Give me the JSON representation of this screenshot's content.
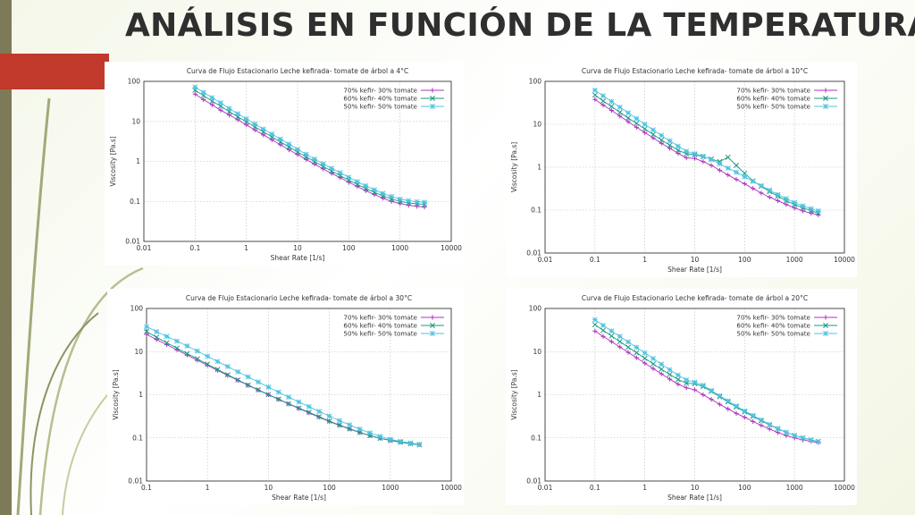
{
  "slide": {
    "title": "ANÁLISIS EN FUNCIÓN DE LA TEMPERATURA"
  },
  "chart_data": [
    {
      "type": "line",
      "title": "Curva de Flujo Estacionario Leche kefirada- tomate de árbol a 4°C",
      "xlabel": "Shear Rate [1/s]",
      "ylabel": "Viscosity [Pa.s]",
      "x_scale": "log",
      "y_scale": "log",
      "xlim": [
        0.01,
        10000
      ],
      "ylim": [
        0.01,
        100
      ],
      "xticks": [
        "0.01",
        "0.1",
        "1",
        "10",
        "100",
        "1000",
        "10000"
      ],
      "yticks": [
        "0.01",
        "0.1",
        "1",
        "10",
        "100"
      ],
      "grid": true,
      "legend_position": "top-right",
      "x": [
        0.1,
        0.146,
        0.215,
        0.316,
        0.464,
        0.681,
        1,
        1.47,
        2.15,
        3.16,
        4.64,
        6.81,
        10,
        14.7,
        21.5,
        31.6,
        46.4,
        68.1,
        100,
        147,
        215,
        316,
        464,
        681,
        1000,
        1470,
        2150,
        3000
      ],
      "series": [
        {
          "name": "70% kefir- 30% tomate",
          "color": "#b030c0",
          "values": [
            48,
            35,
            26,
            19,
            14.5,
            11,
            8.2,
            6.1,
            4.6,
            3.45,
            2.6,
            1.95,
            1.48,
            1.12,
            0.85,
            0.65,
            0.5,
            0.39,
            0.3,
            0.235,
            0.185,
            0.148,
            0.12,
            0.1,
            0.088,
            0.08,
            0.075,
            0.072
          ]
        },
        {
          "name": "60% kefir- 40% tomate",
          "color": "#1a9a80",
          "values": [
            60,
            44,
            32,
            24,
            17.5,
            13,
            9.8,
            7.3,
            5.5,
            4.1,
            3.05,
            2.3,
            1.72,
            1.3,
            0.98,
            0.75,
            0.57,
            0.44,
            0.34,
            0.265,
            0.21,
            0.168,
            0.137,
            0.115,
            0.1,
            0.092,
            0.087,
            0.084
          ]
        },
        {
          "name": "50% kefir- 50% tomate",
          "color": "#4fc3e0",
          "values": [
            72,
            53,
            39,
            29,
            21,
            15.5,
            11.5,
            8.6,
            6.4,
            4.8,
            3.6,
            2.7,
            2.0,
            1.5,
            1.14,
            0.87,
            0.67,
            0.52,
            0.4,
            0.31,
            0.245,
            0.195,
            0.158,
            0.132,
            0.114,
            0.104,
            0.098,
            0.095
          ]
        }
      ]
    },
    {
      "type": "line",
      "title": "Curva de Flujo Estacionario Leche kefirada- tomate de árbol a 10°C",
      "xlabel": "Shear Rate [1/s]",
      "ylabel": "Viscosity [Pa.s]",
      "x_scale": "log",
      "y_scale": "log",
      "xlim": [
        0.01,
        10000
      ],
      "ylim": [
        0.01,
        100
      ],
      "xticks": [
        "0.01",
        "0.1",
        "1",
        "10",
        "100",
        "1000",
        "10000"
      ],
      "yticks": [
        "0.01",
        "0.1",
        "1",
        "10",
        "100"
      ],
      "grid": true,
      "legend_position": "top-right",
      "x": [
        0.1,
        0.146,
        0.215,
        0.316,
        0.464,
        0.681,
        1,
        1.47,
        2.15,
        3.16,
        4.64,
        6.81,
        10,
        14.7,
        21.5,
        31.6,
        46.4,
        68.1,
        100,
        147,
        215,
        316,
        464,
        681,
        1000,
        1470,
        2150,
        3000
      ],
      "series": [
        {
          "name": "70% kefir- 30% tomate",
          "color": "#b030c0",
          "values": [
            38,
            28,
            21,
            15.5,
            11.5,
            8.5,
            6.4,
            4.8,
            3.6,
            2.75,
            2.1,
            1.65,
            1.6,
            1.35,
            1.1,
            0.85,
            0.66,
            0.52,
            0.41,
            0.32,
            0.25,
            0.2,
            0.165,
            0.135,
            0.112,
            0.096,
            0.085,
            0.077
          ]
        },
        {
          "name": "60% kefir- 40% tomate",
          "color": "#1a9a80",
          "values": [
            48,
            35,
            26,
            19,
            14,
            10.5,
            7.8,
            5.8,
            4.3,
            3.25,
            2.5,
            2.05,
            1.95,
            1.75,
            1.55,
            1.35,
            1.7,
            1.1,
            0.72,
            0.48,
            0.36,
            0.27,
            0.21,
            0.165,
            0.135,
            0.113,
            0.097,
            0.085
          ]
        },
        {
          "name": "50% kefir- 50% tomate",
          "color": "#4fc3e0",
          "values": [
            62,
            46,
            34,
            25,
            18.5,
            13.5,
            10,
            7.4,
            5.5,
            4.1,
            3.1,
            2.35,
            2.05,
            1.8,
            1.5,
            1.2,
            0.95,
            0.76,
            0.6,
            0.47,
            0.37,
            0.29,
            0.23,
            0.185,
            0.15,
            0.125,
            0.108,
            0.096
          ]
        }
      ]
    },
    {
      "type": "line",
      "title": "Curva de Flujo Estacionario Leche kefirada- tomate de árbol a 30°C",
      "xlabel": "Shear Rate [1/s]",
      "ylabel": "Viscosity [Pa.s]",
      "x_scale": "log",
      "y_scale": "log",
      "xlim": [
        0.1,
        10000
      ],
      "ylim": [
        0.01,
        100
      ],
      "xticks": [
        "0.1",
        "1",
        "10",
        "100",
        "1000",
        "10000"
      ],
      "yticks": [
        "0.01",
        "0.1",
        "1",
        "10",
        "100"
      ],
      "grid": true,
      "legend_position": "top-right",
      "x": [
        0.1,
        0.146,
        0.215,
        0.316,
        0.464,
        0.681,
        1,
        1.47,
        2.15,
        3.16,
        4.64,
        6.81,
        10,
        14.7,
        21.5,
        31.6,
        46.4,
        68.1,
        100,
        147,
        215,
        316,
        464,
        681,
        1000,
        1470,
        2150,
        3000
      ],
      "series": [
        {
          "name": "70% kefir- 30% tomate",
          "color": "#b030c0",
          "values": [
            25,
            19,
            14.5,
            11,
            8.3,
            6.3,
            4.8,
            3.65,
            2.8,
            2.15,
            1.65,
            1.28,
            1.0,
            0.78,
            0.61,
            0.48,
            0.38,
            0.3,
            0.24,
            0.195,
            0.16,
            0.133,
            0.113,
            0.098,
            0.088,
            0.08,
            0.074,
            0.07
          ]
        },
        {
          "name": "60% kefir- 40% tomate",
          "color": "#1a9a80",
          "values": [
            29,
            21.5,
            16,
            12,
            9,
            6.8,
            5.1,
            3.85,
            2.9,
            2.2,
            1.68,
            1.3,
            1.01,
            0.79,
            0.62,
            0.49,
            0.39,
            0.31,
            0.245,
            0.198,
            0.162,
            0.134,
            0.113,
            0.098,
            0.087,
            0.079,
            0.073,
            0.069
          ]
        },
        {
          "name": "50% kefir- 50% tomate",
          "color": "#4fc3e0",
          "values": [
            38,
            29,
            22.5,
            17.5,
            13.5,
            10.3,
            7.8,
            5.9,
            4.5,
            3.4,
            2.6,
            1.98,
            1.5,
            1.15,
            0.88,
            0.68,
            0.53,
            0.41,
            0.32,
            0.25,
            0.2,
            0.16,
            0.13,
            0.108,
            0.093,
            0.083,
            0.076,
            0.071
          ]
        }
      ]
    },
    {
      "type": "line",
      "title": "Curva de Flujo Estacionario Leche kefirada- tomate de árbol a 20°C",
      "xlabel": "Shear Rate [1/s]",
      "ylabel": "Viscosity [Pa.s]",
      "x_scale": "log",
      "y_scale": "log",
      "xlim": [
        0.01,
        10000
      ],
      "ylim": [
        0.01,
        100
      ],
      "xticks": [
        "0.01",
        "0.1",
        "1",
        "10",
        "100",
        "1000",
        "10000"
      ],
      "yticks": [
        "0.01",
        "0.1",
        "1",
        "10",
        "100"
      ],
      "grid": true,
      "legend_position": "top-right",
      "x": [
        0.1,
        0.146,
        0.215,
        0.316,
        0.464,
        0.681,
        1,
        1.47,
        2.15,
        3.16,
        4.64,
        6.81,
        10,
        14.7,
        21.5,
        31.6,
        46.4,
        68.1,
        100,
        147,
        215,
        316,
        464,
        681,
        1000,
        1470,
        2150,
        3000
      ],
      "series": [
        {
          "name": "70% kefir- 30% tomate",
          "color": "#b030c0",
          "values": [
            30,
            22.5,
            17,
            12.8,
            9.6,
            7.2,
            5.4,
            4.05,
            3.05,
            2.3,
            1.75,
            1.45,
            1.3,
            1.0,
            0.78,
            0.6,
            0.47,
            0.37,
            0.3,
            0.24,
            0.195,
            0.16,
            0.133,
            0.113,
            0.1,
            0.09,
            0.083,
            0.078
          ]
        },
        {
          "name": "60% kefir- 40% tomate",
          "color": "#1a9a80",
          "values": [
            42,
            31,
            23,
            17,
            12.6,
            9.4,
            7.0,
            5.2,
            3.9,
            2.95,
            2.25,
            1.85,
            1.8,
            1.55,
            1.2,
            0.9,
            0.68,
            0.52,
            0.4,
            0.315,
            0.25,
            0.2,
            0.162,
            0.134,
            0.114,
            0.1,
            0.09,
            0.083
          ]
        },
        {
          "name": "50% kefir- 50% tomate",
          "color": "#4fc3e0",
          "values": [
            55,
            40.5,
            30,
            22.5,
            16.8,
            12.5,
            9.3,
            6.9,
            5.1,
            3.8,
            2.85,
            2.2,
            1.95,
            1.65,
            1.25,
            0.95,
            0.72,
            0.55,
            0.42,
            0.33,
            0.26,
            0.205,
            0.165,
            0.135,
            0.114,
            0.099,
            0.089,
            0.082
          ]
        }
      ]
    }
  ]
}
